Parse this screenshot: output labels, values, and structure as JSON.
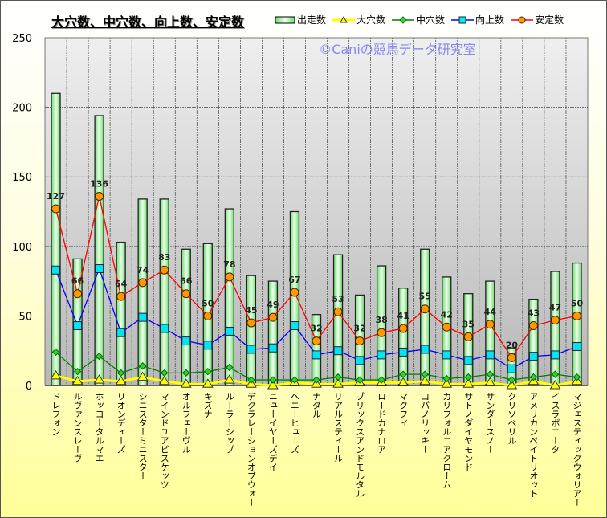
{
  "chart_data": {
    "type": "bar",
    "title": "大穴数、中穴数、向上数、安定数",
    "watermark": "©Caniの競馬データ研究室",
    "ylim": [
      0,
      250
    ],
    "yticks": [
      "0",
      "50",
      "100",
      "150",
      "200",
      "250"
    ],
    "grid": true,
    "legend_position": "top-right",
    "categories": [
      "ドレフォン",
      "ルヴァンスレーヴ",
      "ホッコータルマエ",
      "リオンディーズ",
      "シニスターミニスター",
      "マインドユアビスケッツ",
      "オルフェーヴル",
      "キズナ",
      "ルーラーシップ",
      "デクラレーションオブウォー",
      "ニューイヤーズデイ",
      "ヘニーヒューズ",
      "ナダル",
      "リアルスティール",
      "ブリックスアンドモルタル",
      "ロードカナロア",
      "マクフィ",
      "コパノリッキー",
      "カリフォルニアクローム",
      "サトノダイヤモンド",
      "サンダースノー",
      "クリソベリル",
      "アメリカンペイトリオット",
      "イスラボニータ",
      "マジェスティックウォリアー"
    ],
    "series": [
      {
        "name": "出走数",
        "kind": "bar",
        "color": "#33cc33",
        "values": [
          210,
          91,
          194,
          103,
          134,
          134,
          98,
          102,
          127,
          79,
          75,
          125,
          51,
          94,
          65,
          86,
          70,
          98,
          78,
          66,
          75,
          27,
          62,
          82,
          88
        ]
      },
      {
        "name": "大穴数",
        "kind": "line",
        "color": "#ffff00",
        "marker": "triangle",
        "values": [
          7,
          3,
          4,
          3,
          6,
          3,
          1,
          1,
          4,
          1,
          0,
          2,
          1,
          1,
          2,
          2,
          2,
          3,
          1,
          1,
          2,
          0,
          3,
          0,
          3
        ]
      },
      {
        "name": "中穴数",
        "kind": "line",
        "color": "#008000",
        "marker": "diamond",
        "values": [
          24,
          10,
          21,
          9,
          14,
          9,
          9,
          10,
          13,
          4,
          4,
          4,
          4,
          6,
          4,
          4,
          8,
          8,
          5,
          6,
          8,
          4,
          6,
          8,
          6
        ]
      },
      {
        "name": "向上数",
        "kind": "line",
        "color": "#0000ff",
        "marker": "square",
        "values": [
          83,
          43,
          84,
          38,
          49,
          41,
          32,
          29,
          39,
          26,
          27,
          43,
          22,
          25,
          18,
          22,
          24,
          26,
          22,
          18,
          22,
          12,
          21,
          22,
          28
        ]
      },
      {
        "name": "安定数",
        "kind": "line",
        "color": "#ff0000",
        "marker": "circle",
        "labels": true,
        "values": [
          127,
          66,
          136,
          64,
          74,
          83,
          66,
          50,
          78,
          45,
          49,
          67,
          32,
          53,
          32,
          38,
          41,
          55,
          42,
          35,
          44,
          20,
          43,
          47,
          50
        ]
      }
    ]
  }
}
